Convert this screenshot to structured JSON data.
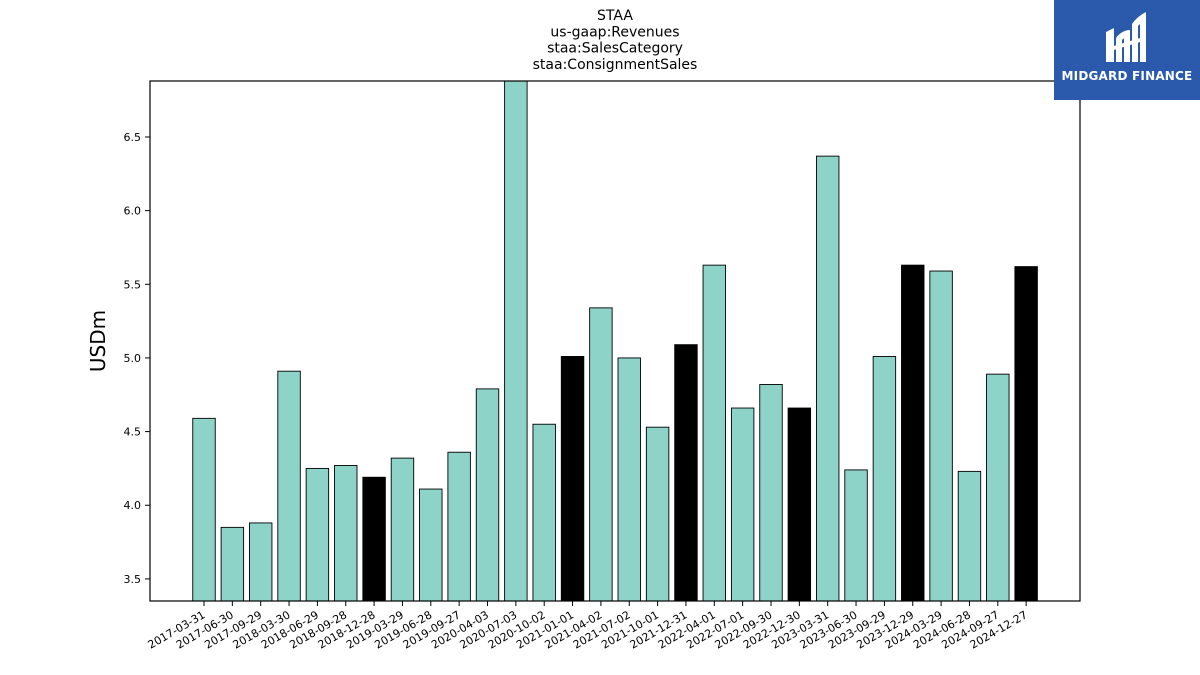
{
  "chart_data": {
    "type": "bar",
    "title_lines": [
      "STAA",
      "us-gaap:Revenues",
      "staa:SalesCategory",
      "staa:ConsignmentSales"
    ],
    "xlabel": "",
    "ylabel": "USDm",
    "ylim": [
      3.35,
      6.88
    ],
    "yticks": [
      3.5,
      4.0,
      4.5,
      5.0,
      5.5,
      6.0,
      6.5
    ],
    "ytick_labels": [
      "3.5",
      "4.0",
      "4.5",
      "5.0",
      "5.5",
      "6.0",
      "6.5"
    ],
    "grid": false,
    "colors": {
      "regular": "#8dd3c7",
      "highlight": "#000000",
      "edge": "#000000"
    },
    "categories": [
      "2017-03-31",
      "2017-06-30",
      "2017-09-29",
      "2018-03-30",
      "2018-06-29",
      "2018-09-28",
      "2018-12-28",
      "2019-03-29",
      "2019-06-28",
      "2019-09-27",
      "2020-04-03",
      "2020-07-03",
      "2020-10-02",
      "2021-01-01",
      "2021-04-02",
      "2021-07-02",
      "2021-10-01",
      "2021-12-31",
      "2022-04-01",
      "2022-07-01",
      "2022-09-30",
      "2022-12-30",
      "2023-03-31",
      "2023-06-30",
      "2023-09-29",
      "2023-12-29",
      "2024-03-29",
      "2024-06-28",
      "2024-09-27",
      "2024-12-27"
    ],
    "values": [
      4.59,
      3.85,
      3.88,
      4.91,
      4.25,
      4.27,
      4.19,
      4.32,
      4.11,
      4.36,
      4.79,
      6.88,
      4.55,
      5.01,
      5.34,
      5.0,
      4.53,
      5.09,
      5.63,
      4.66,
      4.82,
      4.66,
      6.37,
      4.24,
      5.01,
      5.63,
      5.59,
      4.23,
      4.89,
      5.62
    ],
    "highlight": [
      false,
      false,
      false,
      false,
      false,
      false,
      true,
      false,
      false,
      false,
      false,
      false,
      false,
      true,
      false,
      false,
      false,
      true,
      false,
      false,
      false,
      true,
      false,
      false,
      false,
      true,
      false,
      false,
      false,
      true
    ]
  },
  "logo": {
    "text": "MIDGARD FINANCE"
  }
}
